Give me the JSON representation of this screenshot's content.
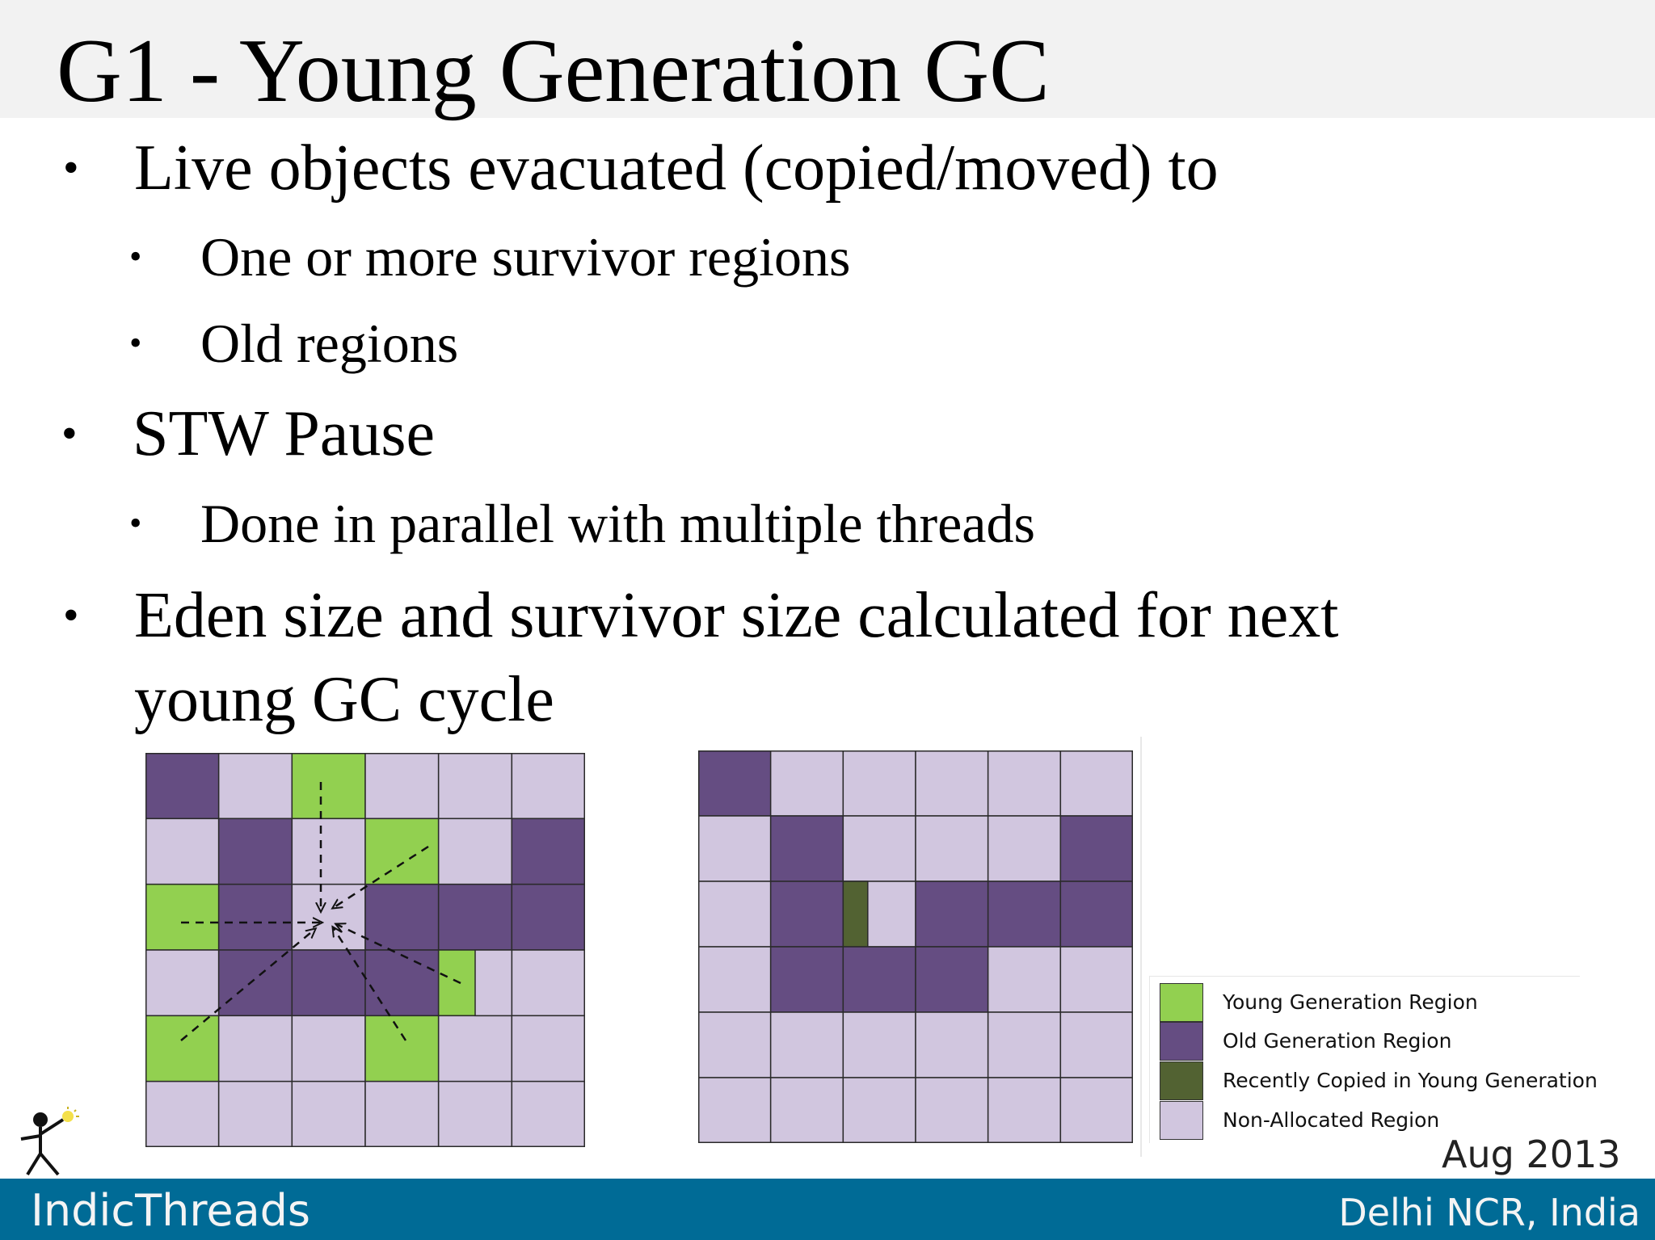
{
  "slide": {
    "title": "G1 - Young Generation GC"
  },
  "bullets": [
    {
      "level": 1,
      "text": "Live objects evacuated (copied/moved) to"
    },
    {
      "level": 2,
      "text": "One or more survivor regions"
    },
    {
      "level": 2,
      "text": "Old regions"
    },
    {
      "level": 1,
      "text": "STW Pause"
    },
    {
      "level": 2,
      "text": "Done in parallel with multiple threads"
    },
    {
      "level": 1,
      "text": "Eden size and survivor size calculated for next"
    },
    {
      "level": 1,
      "text": "young GC cycle"
    }
  ],
  "colors": {
    "young": "#92d050",
    "old": "#654d82",
    "recently_copied": "#526232",
    "non_allocated": "#d1c6df",
    "footer": "#006b96"
  },
  "grids": {
    "before": {
      "rows": 6,
      "cols": 6,
      "cells": [
        [
          "O",
          "N",
          "Y",
          "N",
          "N",
          "N"
        ],
        [
          "N",
          "O",
          "N",
          "Y",
          "N",
          "O"
        ],
        [
          "Y",
          "O",
          "N",
          "O",
          "O",
          "O"
        ],
        [
          "N",
          "O",
          "O",
          "O",
          "Y",
          "N"
        ],
        [
          "Y",
          "N",
          "N",
          "Y",
          "N",
          "N"
        ],
        [
          "N",
          "N",
          "N",
          "N",
          "N",
          "N"
        ]
      ]
    },
    "after": {
      "rows": 6,
      "cols": 6,
      "cells": [
        [
          "O",
          "N",
          "N",
          "N",
          "N",
          "N"
        ],
        [
          "N",
          "O",
          "N",
          "N",
          "N",
          "O"
        ],
        [
          "N",
          "O",
          "R",
          "O",
          "O",
          "O"
        ],
        [
          "N",
          "O",
          "O",
          "O",
          "N",
          "N"
        ],
        [
          "N",
          "N",
          "N",
          "N",
          "N",
          "N"
        ],
        [
          "N",
          "N",
          "N",
          "N",
          "N",
          "N"
        ]
      ]
    }
  },
  "legend": {
    "items": [
      {
        "key": "young",
        "label": "Young Generation Region"
      },
      {
        "key": "old",
        "label": "Old Generation Region"
      },
      {
        "key": "recently_copied",
        "label": "Recently Copied in Young Generation"
      },
      {
        "key": "non_allocated",
        "label": "Non-Allocated Region"
      }
    ]
  },
  "event": {
    "date": "Aug 2013",
    "brand": "IndicThreads",
    "location": "Delhi NCR, India"
  }
}
